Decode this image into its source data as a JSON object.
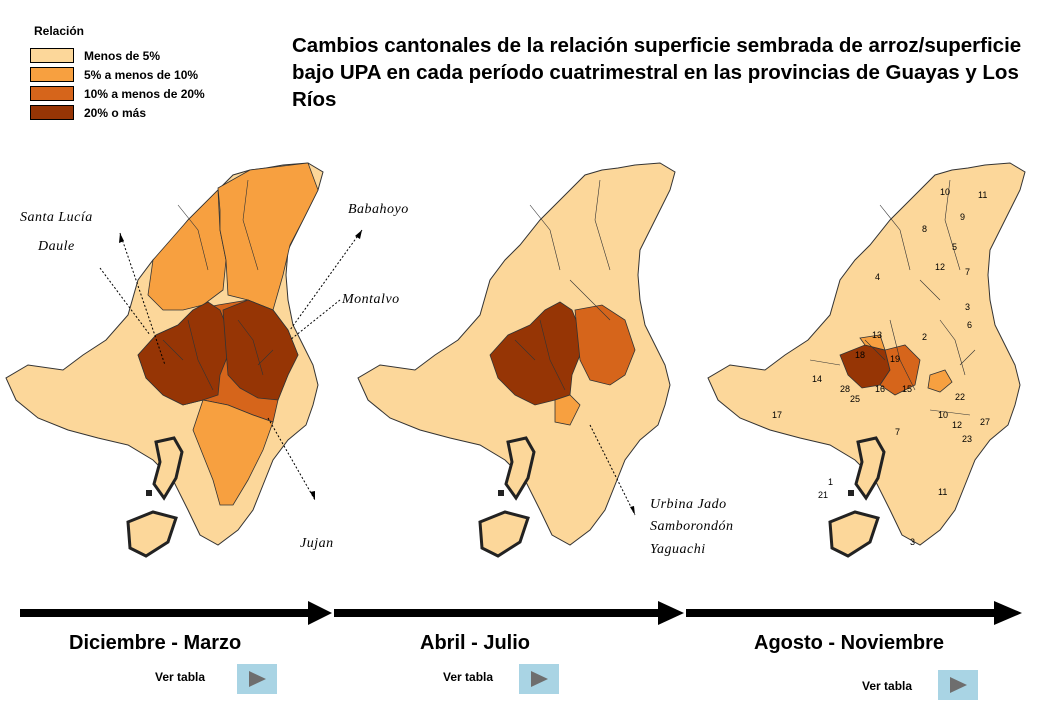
{
  "title": "Cambios cantonales de la relación superficie sembrada de arroz/superficie bajo UPA en cada período cuatrimestral en las provincias de Guayas y Los Ríos",
  "legend": {
    "title": "Relación",
    "items": [
      {
        "label": "Menos de 5%",
        "color": "#fcd79a"
      },
      {
        "label": "5% a menos de 10%",
        "color": "#f7a040"
      },
      {
        "label": "10% a menos de 20%",
        "color": "#d6651b"
      },
      {
        "label": "20% o más",
        "color": "#963505"
      }
    ]
  },
  "callouts": {
    "santa_lucia": "Santa Lucía",
    "daule": "Daule",
    "babahoyo": "Babahoyo",
    "montalvo": "Montalvo",
    "jujan": "Jujan",
    "urbina_jado": "Urbina Jado",
    "samborondon": "Samborondón",
    "yaguachi": "Yaguachi"
  },
  "periods": [
    {
      "label": "Diciembre - Marzo",
      "button": "Ver tabla"
    },
    {
      "label": "Abril - Julio",
      "button": "Ver tabla"
    },
    {
      "label": "Agosto - Noviembre",
      "button": "Ver tabla"
    }
  ],
  "canton_numbers": [
    "10",
    "11",
    "9",
    "8",
    "5",
    "12",
    "7",
    "4",
    "3",
    "6",
    "13",
    "18",
    "19",
    "2",
    "15",
    "14",
    "28",
    "25",
    "16",
    "22",
    "17",
    "10",
    "7",
    "27",
    "12",
    "23",
    "1",
    "11",
    "21",
    "3"
  ]
}
